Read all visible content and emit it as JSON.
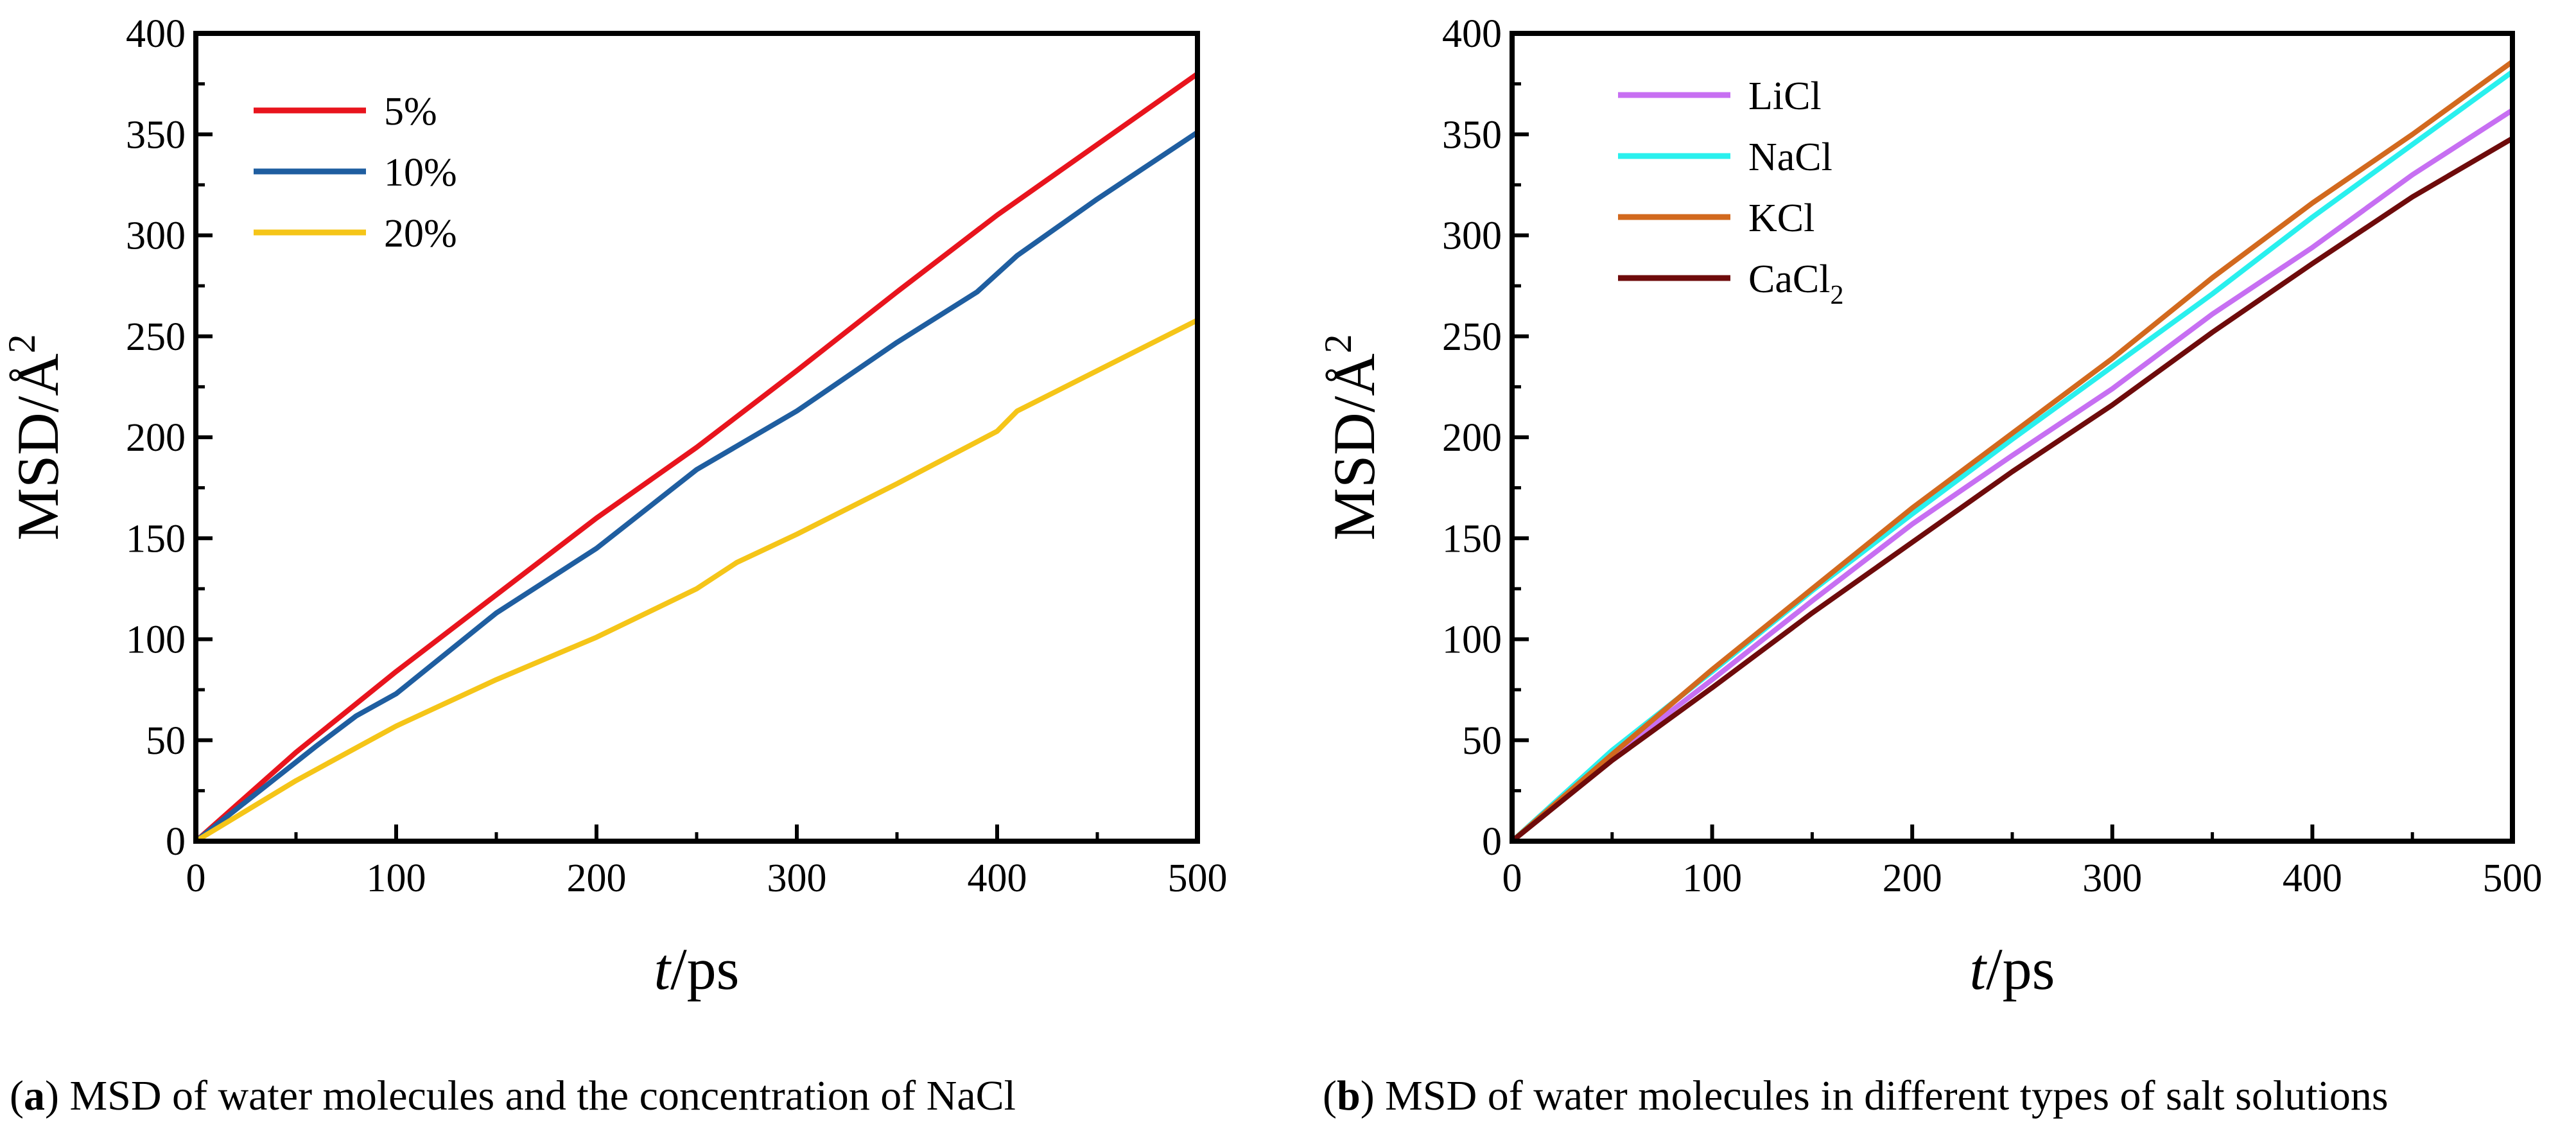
{
  "chart_data": [
    {
      "type": "line",
      "panel_label": "a",
      "caption_rest": ") MSD of water molecules and the concentration of NaCl",
      "xlabel": "t/ps",
      "xlabel_var": "t",
      "xlabel_unit": "/ps",
      "ylabel": "MSD/Å2",
      "ylabel_main": "MSD/Å",
      "ylabel_sup": "2",
      "xlim": [
        0,
        500
      ],
      "ylim": [
        0,
        400
      ],
      "xticks": [
        0,
        100,
        200,
        300,
        400,
        500
      ],
      "yticks": [
        0,
        50,
        100,
        150,
        200,
        250,
        300,
        350,
        400
      ],
      "legend_position": "top-left",
      "grid": false,
      "series": [
        {
          "name": "5%",
          "color": "#e8141d",
          "x": [
            0,
            50,
            100,
            150,
            200,
            250,
            300,
            350,
            400,
            450,
            500
          ],
          "y": [
            0,
            44,
            84,
            122,
            160,
            195,
            233,
            272,
            310,
            345,
            380
          ]
        },
        {
          "name": "10%",
          "color": "#1f5ea0",
          "x": [
            0,
            60,
            80,
            100,
            150,
            200,
            250,
            300,
            350,
            390,
            410,
            450,
            500
          ],
          "y": [
            0,
            47,
            62,
            73,
            113,
            145,
            184,
            213,
            247,
            272,
            290,
            318,
            351
          ]
        },
        {
          "name": "20%",
          "color": "#f5c518",
          "x": [
            0,
            50,
            100,
            150,
            200,
            250,
            270,
            300,
            350,
            400,
            410,
            450,
            500
          ],
          "y": [
            0,
            30,
            57,
            80,
            101,
            125,
            138,
            152,
            177,
            203,
            213,
            233,
            258
          ]
        }
      ]
    },
    {
      "type": "line",
      "panel_label": "b",
      "caption_rest": ") MSD of water molecules in different types of salt solutions",
      "xlabel": "t/ps",
      "xlabel_var": "t",
      "xlabel_unit": "/ps",
      "ylabel": "MSD/Å2",
      "ylabel_main": "MSD/Å",
      "ylabel_sup": "2",
      "xlim": [
        0,
        500
      ],
      "ylim": [
        0,
        400
      ],
      "xticks": [
        0,
        100,
        200,
        300,
        400,
        500
      ],
      "yticks": [
        0,
        50,
        100,
        150,
        200,
        250,
        300,
        350,
        400
      ],
      "legend_position": "top-left",
      "grid": false,
      "series": [
        {
          "name": "LiCl",
          "name_main": "LiCl",
          "name_sub": "",
          "color": "#c76ff2",
          "x": [
            0,
            50,
            100,
            150,
            200,
            250,
            300,
            350,
            400,
            450,
            500
          ],
          "y": [
            0,
            42,
            80,
            119,
            157,
            191,
            224,
            261,
            294,
            330,
            362
          ]
        },
        {
          "name": "NaCl",
          "name_main": "NaCl",
          "name_sub": "",
          "color": "#29f0ee",
          "x": [
            0,
            50,
            100,
            150,
            200,
            250,
            300,
            350,
            400,
            450,
            500
          ],
          "y": [
            0,
            45,
            84,
            124,
            162,
            199,
            235,
            271,
            309,
            345,
            381
          ]
        },
        {
          "name": "KCl",
          "name_main": "KCl",
          "name_sub": "",
          "color": "#d2691e",
          "x": [
            0,
            50,
            100,
            150,
            200,
            250,
            300,
            350,
            400,
            450,
            500
          ],
          "y": [
            0,
            43,
            85,
            125,
            165,
            202,
            239,
            279,
            316,
            350,
            386
          ]
        },
        {
          "name": "CaCl2",
          "name_main": "CaCl",
          "name_sub": "2",
          "color": "#6e0b0b",
          "x": [
            0,
            50,
            100,
            150,
            200,
            250,
            300,
            350,
            400,
            450,
            500
          ],
          "y": [
            0,
            40,
            76,
            113,
            148,
            183,
            216,
            252,
            286,
            319,
            348
          ]
        }
      ]
    }
  ]
}
